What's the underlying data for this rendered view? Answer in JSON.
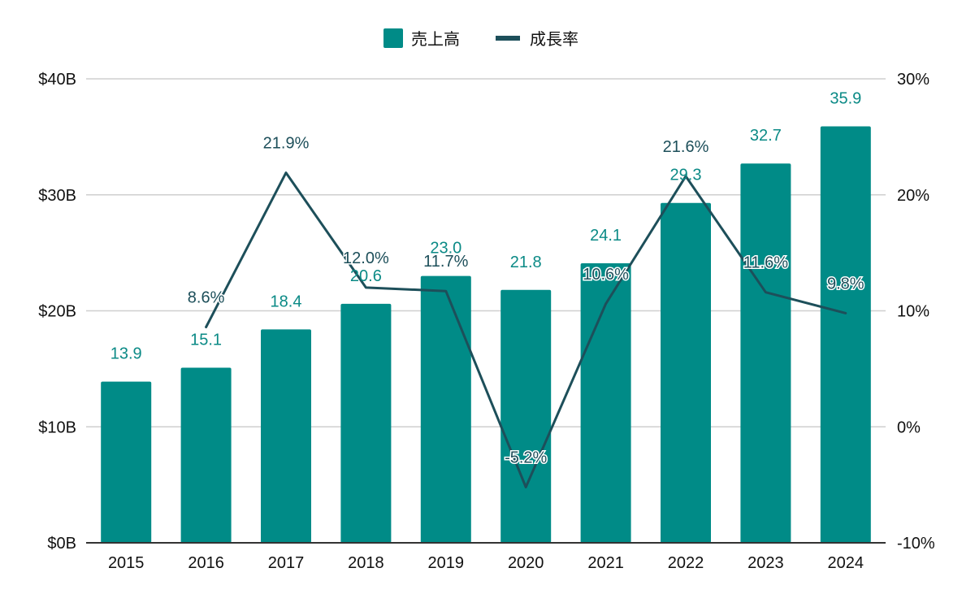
{
  "chart_data": {
    "type": "bar",
    "categories": [
      "2015",
      "2016",
      "2017",
      "2018",
      "2019",
      "2020",
      "2021",
      "2022",
      "2023",
      "2024"
    ],
    "series": [
      {
        "name": "売上高",
        "type": "bar",
        "axis": "left",
        "values": [
          13.9,
          15.1,
          18.4,
          20.6,
          23.0,
          21.8,
          24.1,
          29.3,
          32.7,
          35.9
        ],
        "labels": [
          "13.9",
          "15.1",
          "18.4",
          "20.6",
          "23.0",
          "21.8",
          "24.1",
          "29.3",
          "32.7",
          "35.9"
        ],
        "color": "#008b87"
      },
      {
        "name": "成長率",
        "type": "line",
        "axis": "right",
        "values": [
          null,
          8.6,
          21.9,
          12.0,
          11.7,
          -5.2,
          10.6,
          21.6,
          11.6,
          9.8
        ],
        "labels": [
          "",
          "8.6%",
          "21.9%",
          "12.0%",
          "11.7%",
          "-5.2%",
          "10.6%",
          "21.6%",
          "11.6%",
          "9.8%"
        ],
        "color": "#1d4f5a"
      }
    ],
    "left_axis": {
      "min": 0,
      "max": 40,
      "ticks": [
        0,
        10,
        20,
        30,
        40
      ],
      "tick_labels": [
        "$0B",
        "$10B",
        "$20B",
        "$30B",
        "$40B"
      ]
    },
    "right_axis": {
      "min": -10,
      "max": 30,
      "ticks": [
        -10,
        0,
        10,
        20,
        30
      ],
      "tick_labels": [
        "-10%",
        "0%",
        "10%",
        "20%",
        "30%"
      ]
    },
    "title": "",
    "xlabel": "",
    "ylabel": "",
    "grid": true,
    "legend_position": "top-center",
    "grid_color": "#cfcfcf",
    "axis_color": "#333333"
  }
}
